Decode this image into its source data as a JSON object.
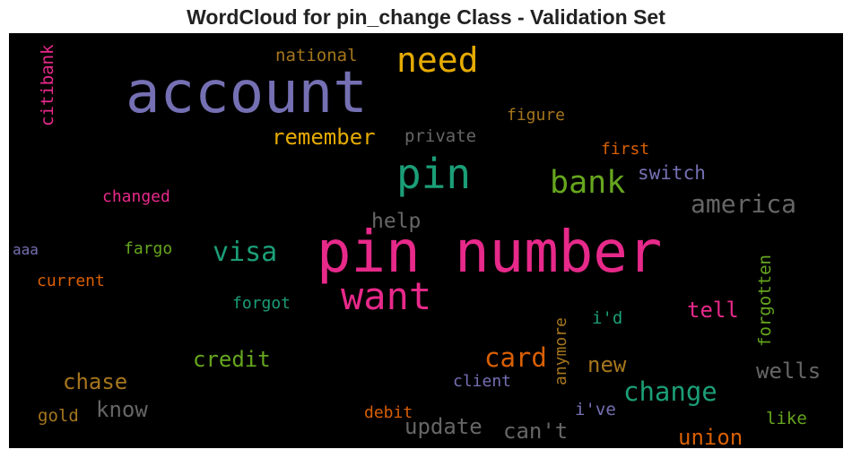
{
  "chart_data": {
    "type": "wordcloud",
    "title": "WordCloud for pin_change Class - Validation Set",
    "background": "#000000",
    "palette": "Dark2",
    "words": [
      {
        "text": "pin number",
        "color": "#e7298a",
        "orientation": "horizontal"
      },
      {
        "text": "account",
        "color": "#7570b3",
        "orientation": "horizontal"
      },
      {
        "text": "pin",
        "color": "#1b9e77",
        "orientation": "horizontal"
      },
      {
        "text": "want",
        "color": "#e7298a",
        "orientation": "horizontal"
      },
      {
        "text": "need",
        "color": "#e6ab02",
        "orientation": "horizontal"
      },
      {
        "text": "bank",
        "color": "#66a61e",
        "orientation": "horizontal"
      },
      {
        "text": "america",
        "color": "#666666",
        "orientation": "horizontal"
      },
      {
        "text": "visa",
        "color": "#1b9e77",
        "orientation": "horizontal"
      },
      {
        "text": "change",
        "color": "#1b9e77",
        "orientation": "horizontal"
      },
      {
        "text": "card",
        "color": "#d95f02",
        "orientation": "horizontal"
      },
      {
        "text": "credit",
        "color": "#66a61e",
        "orientation": "horizontal"
      },
      {
        "text": "chase",
        "color": "#a6761d",
        "orientation": "horizontal"
      },
      {
        "text": "know",
        "color": "#666666",
        "orientation": "horizontal"
      },
      {
        "text": "update",
        "color": "#666666",
        "orientation": "horizontal"
      },
      {
        "text": "can't",
        "color": "#666666",
        "orientation": "horizontal"
      },
      {
        "text": "wells",
        "color": "#666666",
        "orientation": "horizontal"
      },
      {
        "text": "union",
        "color": "#d95f02",
        "orientation": "horizontal"
      },
      {
        "text": "remember",
        "color": "#e6ab02",
        "orientation": "horizontal"
      },
      {
        "text": "switch",
        "color": "#7570b3",
        "orientation": "horizontal"
      },
      {
        "text": "help",
        "color": "#666666",
        "orientation": "horizontal"
      },
      {
        "text": "tell",
        "color": "#e7298a",
        "orientation": "horizontal"
      },
      {
        "text": "new",
        "color": "#a6761d",
        "orientation": "horizontal"
      },
      {
        "text": "private",
        "color": "#666666",
        "orientation": "horizontal"
      },
      {
        "text": "figure",
        "color": "#a6761d",
        "orientation": "horizontal"
      },
      {
        "text": "national",
        "color": "#a6761d",
        "orientation": "horizontal"
      },
      {
        "text": "first",
        "color": "#d95f02",
        "orientation": "horizontal"
      },
      {
        "text": "changed",
        "color": "#e7298a",
        "orientation": "horizontal"
      },
      {
        "text": "fargo",
        "color": "#66a61e",
        "orientation": "horizontal"
      },
      {
        "text": "aaa",
        "color": "#7570b3",
        "orientation": "horizontal"
      },
      {
        "text": "current",
        "color": "#d95f02",
        "orientation": "horizontal"
      },
      {
        "text": "forgot",
        "color": "#1b9e77",
        "orientation": "horizontal"
      },
      {
        "text": "i'd",
        "color": "#1b9e77",
        "orientation": "horizontal"
      },
      {
        "text": "client",
        "color": "#7570b3",
        "orientation": "horizontal"
      },
      {
        "text": "debit",
        "color": "#d95f02",
        "orientation": "horizontal"
      },
      {
        "text": "i've",
        "color": "#7570b3",
        "orientation": "horizontal"
      },
      {
        "text": "gold",
        "color": "#a6761d",
        "orientation": "horizontal"
      },
      {
        "text": "like",
        "color": "#66a61e",
        "orientation": "horizontal"
      },
      {
        "text": "citibank",
        "color": "#e7298a",
        "orientation": "vertical"
      },
      {
        "text": "anymore",
        "color": "#a6761d",
        "orientation": "vertical"
      },
      {
        "text": "forgotten",
        "color": "#66a61e",
        "orientation": "vertical"
      }
    ]
  }
}
